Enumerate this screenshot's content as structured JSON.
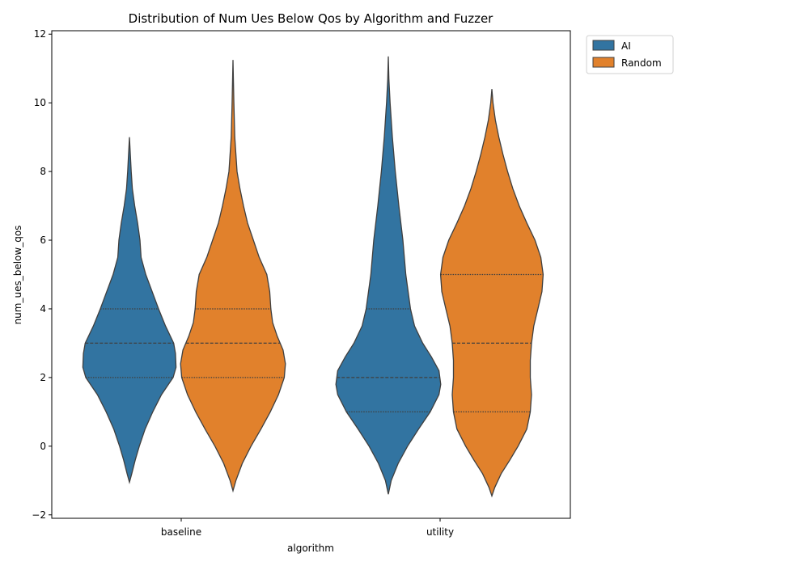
{
  "chart_data": {
    "type": "violin",
    "title": "Distribution of Num Ues Below Qos by Algorithm and Fuzzer",
    "xlabel": "algorithm",
    "ylabel": "num_ues_below_qos",
    "categories": [
      "baseline",
      "utility"
    ],
    "ylim": [
      -2.1,
      12.1
    ],
    "yticks": [
      -2,
      0,
      2,
      4,
      6,
      8,
      10,
      12
    ],
    "grid": false,
    "legend_position": "upper-right-outside",
    "inner": "quartile",
    "series": [
      {
        "name": "AI",
        "color": "#3274a1",
        "violins": [
          {
            "category": "baseline",
            "quartiles": [
              2,
              3,
              4
            ],
            "y_range": [
              -1.05,
              9.0
            ],
            "profile": [
              [
                -1.05,
                0
              ],
              [
                -0.8,
                0.04
              ],
              [
                -0.4,
                0.1
              ],
              [
                0,
                0.17
              ],
              [
                0.5,
                0.27
              ],
              [
                1.0,
                0.4
              ],
              [
                1.5,
                0.55
              ],
              [
                2.0,
                0.75
              ],
              [
                2.3,
                0.8
              ],
              [
                2.7,
                0.79
              ],
              [
                3.0,
                0.76
              ],
              [
                3.5,
                0.62
              ],
              [
                4.0,
                0.5
              ],
              [
                4.5,
                0.39
              ],
              [
                5.0,
                0.28
              ],
              [
                5.5,
                0.2
              ],
              [
                6.0,
                0.18
              ],
              [
                6.5,
                0.14
              ],
              [
                7.0,
                0.09
              ],
              [
                7.5,
                0.05
              ],
              [
                8.0,
                0.03
              ],
              [
                8.5,
                0.015
              ],
              [
                9.0,
                0
              ]
            ]
          },
          {
            "category": "utility",
            "quartiles": [
              1,
              2,
              4
            ],
            "y_range": [
              -1.4,
              11.35
            ],
            "profile": [
              [
                -1.4,
                0
              ],
              [
                -1.0,
                0.05
              ],
              [
                -0.5,
                0.17
              ],
              [
                0,
                0.33
              ],
              [
                0.5,
                0.52
              ],
              [
                1.0,
                0.72
              ],
              [
                1.5,
                0.87
              ],
              [
                1.8,
                0.9
              ],
              [
                2.2,
                0.87
              ],
              [
                2.6,
                0.74
              ],
              [
                3.0,
                0.59
              ],
              [
                3.5,
                0.45
              ],
              [
                4.0,
                0.38
              ],
              [
                5.0,
                0.3
              ],
              [
                6.0,
                0.25
              ],
              [
                7.0,
                0.18
              ],
              [
                8.0,
                0.12
              ],
              [
                9.0,
                0.07
              ],
              [
                10.0,
                0.03
              ],
              [
                10.7,
                0.01
              ],
              [
                11.35,
                0
              ]
            ]
          }
        ]
      },
      {
        "name": "Random",
        "color": "#e1812c",
        "violins": [
          {
            "category": "baseline",
            "quartiles": [
              2,
              3,
              4
            ],
            "y_range": [
              -1.3,
              11.25
            ],
            "profile": [
              [
                -1.3,
                0
              ],
              [
                -1.0,
                0.05
              ],
              [
                -0.5,
                0.16
              ],
              [
                0,
                0.31
              ],
              [
                0.5,
                0.48
              ],
              [
                1.0,
                0.64
              ],
              [
                1.5,
                0.78
              ],
              [
                2.0,
                0.88
              ],
              [
                2.4,
                0.9
              ],
              [
                2.8,
                0.86
              ],
              [
                3.2,
                0.76
              ],
              [
                3.6,
                0.68
              ],
              [
                4.0,
                0.65
              ],
              [
                4.5,
                0.63
              ],
              [
                5.0,
                0.58
              ],
              [
                5.5,
                0.45
              ],
              [
                6.0,
                0.35
              ],
              [
                6.5,
                0.25
              ],
              [
                7.0,
                0.18
              ],
              [
                7.5,
                0.12
              ],
              [
                8.0,
                0.07
              ],
              [
                9.0,
                0.03
              ],
              [
                10.0,
                0.015
              ],
              [
                11.25,
                0
              ]
            ]
          },
          {
            "category": "utility",
            "quartiles": [
              1,
              3,
              5
            ],
            "y_range": [
              -1.45,
              10.4
            ],
            "profile": [
              [
                -1.45,
                0
              ],
              [
                -1.2,
                0.05
              ],
              [
                -0.8,
                0.16
              ],
              [
                -0.4,
                0.31
              ],
              [
                0,
                0.45
              ],
              [
                0.5,
                0.6
              ],
              [
                1.0,
                0.66
              ],
              [
                1.5,
                0.68
              ],
              [
                2.0,
                0.66
              ],
              [
                2.5,
                0.66
              ],
              [
                3.0,
                0.68
              ],
              [
                3.5,
                0.72
              ],
              [
                4.0,
                0.79
              ],
              [
                4.5,
                0.86
              ],
              [
                5.0,
                0.88
              ],
              [
                5.5,
                0.84
              ],
              [
                6.0,
                0.74
              ],
              [
                6.5,
                0.6
              ],
              [
                7.0,
                0.47
              ],
              [
                7.5,
                0.36
              ],
              [
                8.0,
                0.27
              ],
              [
                8.5,
                0.19
              ],
              [
                9.0,
                0.12
              ],
              [
                9.5,
                0.06
              ],
              [
                10.0,
                0.02
              ],
              [
                10.4,
                0
              ]
            ]
          }
        ]
      }
    ],
    "legend": [
      "AI",
      "Random"
    ]
  }
}
